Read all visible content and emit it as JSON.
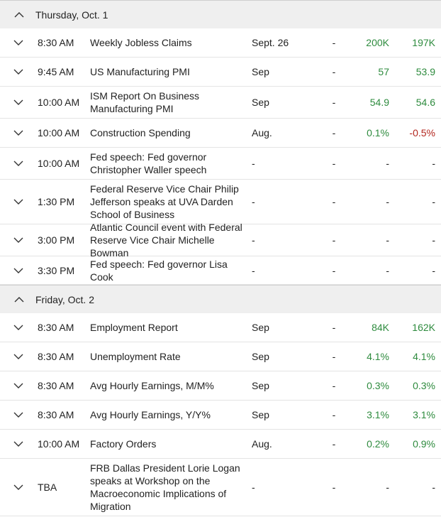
{
  "days": [
    {
      "title": "Thursday, Oct. 1",
      "rows": [
        {
          "time": "8:30 AM",
          "event": "Weekly Jobless Claims",
          "period": "Sept. 26",
          "actual": "-",
          "forecast": "200K",
          "previous": "197K"
        },
        {
          "time": "9:45 AM",
          "event": "US Manufacturing PMI",
          "period": "Sep",
          "actual": "-",
          "forecast": "57",
          "previous": "53.9"
        },
        {
          "time": "10:00 AM",
          "event": "ISM Report On Business Manufacturing PMI",
          "period": "Sep",
          "actual": "-",
          "forecast": "54.9",
          "previous": "54.6"
        },
        {
          "time": "10:00 AM",
          "event": "Construction Spending",
          "period": "Aug.",
          "actual": "-",
          "forecast": "0.1%",
          "previous": "-0.5%"
        },
        {
          "time": "10:00 AM",
          "event": "Fed speech: Fed governor Christopher Waller speech",
          "period": "-",
          "actual": "-",
          "forecast": "-",
          "previous": "-"
        },
        {
          "time": "1:30 PM",
          "event": "Federal Reserve Vice Chair Philip Jefferson speaks at UVA Darden School of Business",
          "period": "-",
          "actual": "-",
          "forecast": "-",
          "previous": "-"
        },
        {
          "time": "3:00 PM",
          "event": "Atlantic Council event with Federal Reserve Vice Chair Michelle Bowman",
          "period": "-",
          "actual": "-",
          "forecast": "-",
          "previous": "-"
        },
        {
          "time": "3:30 PM",
          "event": "Fed speech: Fed governor Lisa Cook",
          "period": "-",
          "actual": "-",
          "forecast": "-",
          "previous": "-"
        }
      ]
    },
    {
      "title": "Friday, Oct. 2",
      "rows": [
        {
          "time": "8:30 AM",
          "event": "Employment Report",
          "period": "Sep",
          "actual": "-",
          "forecast": "84K",
          "previous": "162K"
        },
        {
          "time": "8:30 AM",
          "event": "Unemployment Rate",
          "period": "Sep",
          "actual": "-",
          "forecast": "4.1%",
          "previous": "4.1%"
        },
        {
          "time": "8:30 AM",
          "event": "Avg Hourly Earnings, M/M%",
          "period": "Sep",
          "actual": "-",
          "forecast": "0.3%",
          "previous": "0.3%"
        },
        {
          "time": "8:30 AM",
          "event": "Avg Hourly Earnings, Y/Y%",
          "period": "Sep",
          "actual": "-",
          "forecast": "3.1%",
          "previous": "3.1%"
        },
        {
          "time": "10:00 AM",
          "event": "Factory Orders",
          "period": "Aug.",
          "actual": "-",
          "forecast": "0.2%",
          "previous": "0.9%"
        },
        {
          "time": "TBA",
          "event": "FRB Dallas President Lorie Logan speaks at Workshop on the Macroeconomic Implications of Migration",
          "period": "-",
          "actual": "-",
          "forecast": "-",
          "previous": "-"
        }
      ]
    }
  ],
  "colors": {
    "positive": "#2e8b3e",
    "negative": "#b3261e",
    "header_bg": "#efefef"
  }
}
